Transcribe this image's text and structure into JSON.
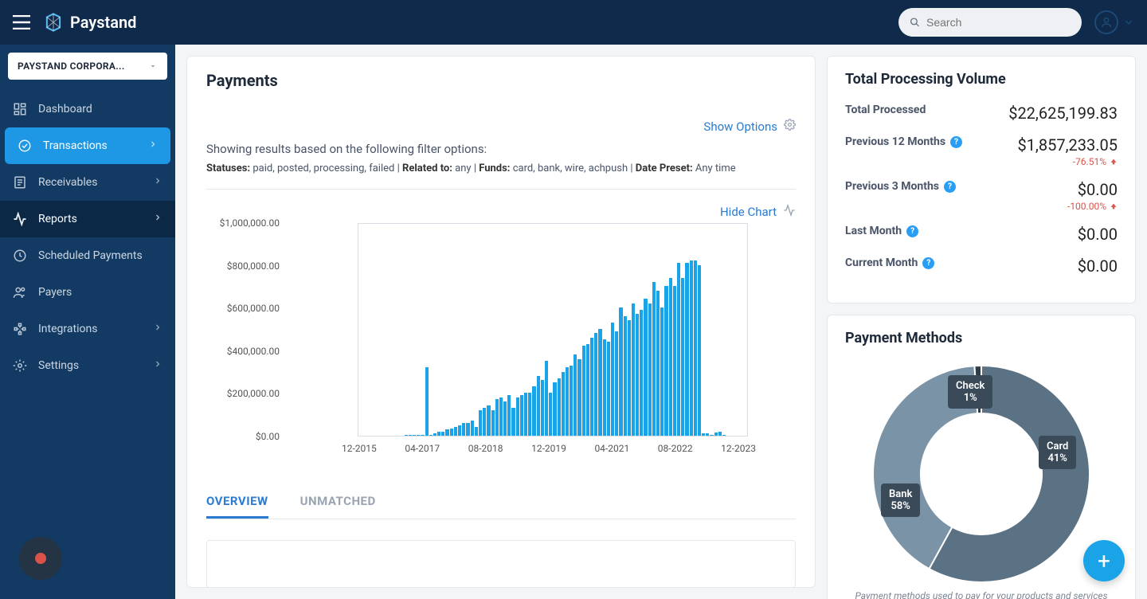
{
  "brand": "Paystand",
  "search_placeholder": "Search",
  "org_selector": "PAYSTAND CORPORA...",
  "sidebar": {
    "items": [
      {
        "label": "Dashboard",
        "chevron": false
      },
      {
        "label": "Transactions",
        "chevron": true,
        "active": true
      },
      {
        "label": "Receivables",
        "chevron": true
      },
      {
        "label": "Reports",
        "chevron": true,
        "dark": true
      },
      {
        "label": "Scheduled Payments",
        "chevron": false
      },
      {
        "label": "Payers",
        "chevron": false
      },
      {
        "label": "Integrations",
        "chevron": true
      },
      {
        "label": "Settings",
        "chevron": true
      }
    ]
  },
  "main": {
    "title": "Payments",
    "show_options": "Show Options",
    "filter_intro": "Showing results based on the following filter options:",
    "filters": {
      "statuses_label": "Statuses:",
      "statuses_value": "paid, posted, processing, failed",
      "related_label": "Related to:",
      "related_value": "any",
      "funds_label": "Funds:",
      "funds_value": "card, bank, wire, achpush",
      "date_label": "Date Preset:",
      "date_value": "Any time",
      "separator": "  |  "
    },
    "hide_chart": "Hide Chart",
    "chart": {
      "type": "bar",
      "background_color": "#ffffff",
      "border_color": "#d9dde3",
      "bar_color": "#1ba3e8",
      "tick_color": "#555555",
      "tick_fontsize": 12,
      "ylim": [
        0,
        1000000
      ],
      "ytick_step": 200000,
      "yticks": [
        "$0.00",
        "$200,000.00",
        "$400,000.00",
        "$600,000.00",
        "$800,000.00",
        "$1,000,000.00"
      ],
      "xticks": [
        "12-2015",
        "04-2017",
        "08-2018",
        "12-2019",
        "04-2021",
        "08-2022",
        "12-2023"
      ],
      "values": [
        0,
        0,
        0,
        0,
        0,
        0,
        0,
        0,
        0,
        0,
        0,
        5000,
        5000,
        5000,
        5000,
        5000,
        320000,
        5000,
        10000,
        20000,
        20000,
        30000,
        35000,
        40000,
        50000,
        60000,
        60000,
        70000,
        40000,
        120000,
        130000,
        140000,
        120000,
        170000,
        180000,
        160000,
        190000,
        130000,
        180000,
        190000,
        200000,
        200000,
        230000,
        280000,
        260000,
        350000,
        200000,
        250000,
        270000,
        300000,
        320000,
        330000,
        380000,
        360000,
        420000,
        430000,
        460000,
        480000,
        500000,
        450000,
        440000,
        530000,
        490000,
        600000,
        560000,
        540000,
        620000,
        570000,
        590000,
        640000,
        620000,
        720000,
        680000,
        600000,
        700000,
        740000,
        700000,
        810000,
        740000,
        810000,
        820000,
        820000,
        800000,
        10000,
        10000,
        5000,
        15000,
        20000,
        5000,
        0,
        0,
        0,
        0,
        0
      ]
    },
    "tabs": [
      {
        "label": "OVERVIEW",
        "selected": true
      },
      {
        "label": "UNMATCHED",
        "selected": false
      }
    ]
  },
  "volume": {
    "title": "Total Processing Volume",
    "rows": [
      {
        "label": "Total Processed",
        "help": false,
        "amount": "$22,625,199.83",
        "delta": null
      },
      {
        "label": "Previous 12 Months",
        "help": true,
        "amount": "$1,857,233.05",
        "delta": "-76.51%"
      },
      {
        "label": "Previous 3 Months",
        "help": true,
        "amount": "$0.00",
        "delta": "-100.00%"
      },
      {
        "label": "Last Month",
        "help": true,
        "amount": "$0.00",
        "delta": null
      },
      {
        "label": "Current Month",
        "help": true,
        "amount": "$0.00",
        "delta": null
      }
    ],
    "delta_color": "#d9534a"
  },
  "payment_methods": {
    "title": "Payment Methods",
    "caption": "Payment methods used to pay for your products and services",
    "donut": {
      "type": "pie",
      "inner_radius_pct": 55,
      "slices": [
        {
          "name": "Bank",
          "value": 58,
          "color": "#5b7285",
          "label": "Bank\n58%"
        },
        {
          "name": "Card",
          "value": 41,
          "color": "#7a93a6",
          "label": "Card\n41%"
        },
        {
          "name": "Check",
          "value": 1,
          "color": "#2f3c48",
          "label": "Check\n1%"
        }
      ],
      "label_bg": "#3b4a58",
      "label_color": "#ffffff"
    }
  }
}
